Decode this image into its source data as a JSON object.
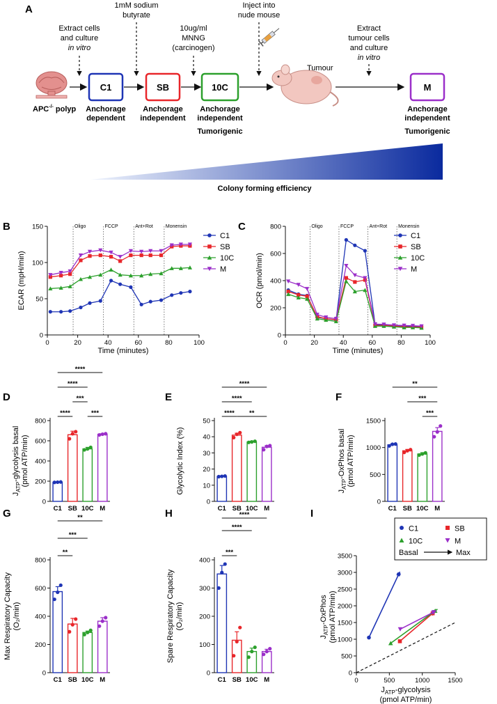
{
  "colors": {
    "C1": "#1f35b5",
    "SB": "#e8262a",
    "10C": "#2ca02c",
    "M": "#9b2fc9",
    "gradient_dark": "#0a2a9e",
    "gradient_light": "#dfe8fb"
  },
  "panelA": {
    "letter": "A",
    "steps": [
      {
        "text_lines": [
          "Extract cells",
          "and culture"
        ],
        "italic": "in vitro"
      },
      {
        "text_lines": [
          "1mM sodium",
          "butyrate"
        ],
        "italic": ""
      },
      {
        "text_lines": [
          "10ug/ml",
          "MNNG",
          "(carcinogen)"
        ],
        "italic": ""
      },
      {
        "text_lines": [
          "Inject into",
          "nude mouse"
        ],
        "italic": ""
      },
      {
        "text_lines": [
          "Extract",
          "tumour cells",
          "and culture"
        ],
        "italic": "in vitro"
      }
    ],
    "polyp_label": "APC",
    "polyp_sup": "-/-",
    "polyp_suffix": " polyp",
    "tumour_label": "Tumour",
    "boxes": [
      {
        "label": "C1",
        "desc_lines": [
          "Anchorage",
          "dependent"
        ],
        "extra": ""
      },
      {
        "label": "SB",
        "desc_lines": [
          "Anchorage",
          "independent"
        ],
        "extra": ""
      },
      {
        "label": "10C",
        "desc_lines": [
          "Anchorage",
          "independent"
        ],
        "extra": "Tumorigenic"
      },
      {
        "label": "M",
        "desc_lines": [
          "Anchorage",
          "independent"
        ],
        "extra": "Tumorigenic"
      }
    ],
    "gradient_label": "Colony forming efficiency"
  },
  "legend_groups": [
    "C1",
    "SB",
    "10C",
    "M"
  ],
  "injections": [
    "Oligo",
    "FCCP",
    "Ant+Rot",
    "Monensin"
  ],
  "chart_data": [
    {
      "id": "B",
      "type": "line",
      "letter": "B",
      "ylabel": "ECAR (mpH/min)",
      "xlabel": "Time (minutes)",
      "xlim": [
        0,
        100
      ],
      "ylim": [
        0,
        150
      ],
      "xticks": [
        "0",
        "20",
        "40",
        "60",
        "80",
        "100"
      ],
      "yticks": [
        "0",
        "50",
        "100",
        "150"
      ],
      "injection_times": [
        17,
        37,
        57,
        77
      ],
      "x": [
        2,
        9,
        15,
        22,
        28,
        35,
        42,
        48,
        55,
        62,
        68,
        75,
        82,
        88,
        94
      ],
      "series": [
        {
          "name": "C1",
          "values": [
            32,
            32,
            33,
            38,
            44,
            47,
            75,
            70,
            66,
            42,
            46,
            48,
            55,
            58,
            60
          ]
        },
        {
          "name": "SB",
          "values": [
            80,
            82,
            84,
            103,
            109,
            110,
            108,
            102,
            110,
            110,
            110,
            110,
            122,
            123,
            123
          ]
        },
        {
          "name": "10C",
          "values": [
            64,
            65,
            67,
            77,
            80,
            83,
            90,
            83,
            82,
            82,
            84,
            85,
            92,
            92,
            93
          ]
        },
        {
          "name": "M",
          "values": [
            83,
            86,
            88,
            110,
            115,
            117,
            114,
            108,
            116,
            115,
            116,
            116,
            124,
            125,
            125
          ]
        }
      ]
    },
    {
      "id": "C",
      "type": "line",
      "letter": "C",
      "ylabel": "OCR (pmol/min)",
      "xlabel": "Time (minutes)",
      "xlim": [
        0,
        100
      ],
      "ylim": [
        0,
        800
      ],
      "xticks": [
        "0",
        "20",
        "40",
        "60",
        "80",
        "100"
      ],
      "yticks": [
        "0",
        "200",
        "400",
        "600",
        "800"
      ],
      "injection_times": [
        17,
        37,
        57,
        77
      ],
      "x": [
        2,
        9,
        15,
        22,
        28,
        35,
        42,
        48,
        55,
        62,
        68,
        75,
        82,
        88,
        94
      ],
      "series": [
        {
          "name": "C1",
          "values": [
            330,
            300,
            290,
            130,
            120,
            110,
            700,
            660,
            620,
            75,
            75,
            70,
            65,
            62,
            60
          ]
        },
        {
          "name": "SB",
          "values": [
            320,
            295,
            285,
            135,
            120,
            112,
            420,
            390,
            405,
            70,
            70,
            65,
            60,
            58,
            57
          ]
        },
        {
          "name": "10C",
          "values": [
            300,
            275,
            265,
            120,
            110,
            100,
            395,
            320,
            330,
            65,
            65,
            60,
            55,
            55,
            52
          ]
        },
        {
          "name": "M",
          "values": [
            395,
            370,
            340,
            150,
            130,
            120,
            510,
            440,
            420,
            80,
            78,
            72,
            70,
            68,
            65
          ]
        }
      ]
    },
    {
      "id": "D",
      "type": "bar",
      "letter": "D",
      "ylabel_main": "J",
      "ylabel_sub": "ATP",
      "ylabel_rest": "-glycolysis basal",
      "ylabel2": "(pmol ATP/min)",
      "categories": [
        "C1",
        "SB",
        "10C",
        "M"
      ],
      "values": [
        190,
        660,
        520,
        665
      ],
      "errors": [
        5,
        35,
        15,
        5
      ],
      "ylim": [
        0,
        800
      ],
      "yticks": [
        "0",
        "200",
        "400",
        "600",
        "800"
      ],
      "points": [
        [
          188,
          190,
          192
        ],
        [
          620,
          670,
          690
        ],
        [
          510,
          520,
          535
        ],
        [
          658,
          665,
          670
        ]
      ],
      "sig": [
        {
          "from": 0,
          "to": 3,
          "stars": "****",
          "level": 4
        },
        {
          "from": 0,
          "to": 2,
          "stars": "****",
          "level": 3
        },
        {
          "from": 1,
          "to": 2,
          "stars": "***",
          "level": 2
        },
        {
          "from": 0,
          "to": 1,
          "stars": "****",
          "level": 1
        },
        {
          "from": 2,
          "to": 3,
          "stars": "***",
          "level": 1
        }
      ]
    },
    {
      "id": "E",
      "type": "bar",
      "letter": "E",
      "ylabel_main": "Glycolytic Index (%)",
      "ylabel_sub": "",
      "ylabel_rest": "",
      "ylabel2": "",
      "categories": [
        "C1",
        "SB",
        "10C",
        "M"
      ],
      "values": [
        15.5,
        41,
        36.8,
        33.5
      ],
      "errors": [
        0.3,
        1.2,
        0.5,
        1
      ],
      "ylim": [
        0,
        50
      ],
      "yticks": [
        "0",
        "10",
        "20",
        "30",
        "40",
        "50"
      ],
      "points": [
        [
          15.3,
          15.5,
          15.7
        ],
        [
          39.5,
          41.5,
          42.5
        ],
        [
          36.5,
          36.8,
          37.2
        ],
        [
          32,
          34,
          34.5
        ]
      ],
      "sig": [
        {
          "from": 0,
          "to": 3,
          "stars": "****",
          "level": 3
        },
        {
          "from": 0,
          "to": 2,
          "stars": "****",
          "level": 2
        },
        {
          "from": 0,
          "to": 1,
          "stars": "****",
          "level": 1
        },
        {
          "from": 1,
          "to": 3,
          "stars": "**",
          "level": 1
        }
      ]
    },
    {
      "id": "F",
      "type": "bar",
      "letter": "F",
      "ylabel_main": "J",
      "ylabel_sub": "ATP",
      "ylabel_rest": "-OxPhos basal",
      "ylabel2": "(pmol ATP/min)",
      "categories": [
        "C1",
        "SB",
        "10C",
        "M"
      ],
      "values": [
        1050,
        940,
        880,
        1300
      ],
      "errors": [
        20,
        25,
        25,
        70
      ],
      "ylim": [
        0,
        1500
      ],
      "yticks": [
        "0",
        "500",
        "1000",
        "1500"
      ],
      "points": [
        [
          1030,
          1060,
          1065
        ],
        [
          910,
          940,
          960
        ],
        [
          860,
          880,
          900
        ],
        [
          1200,
          1290,
          1400
        ]
      ],
      "sig": [
        {
          "from": 0,
          "to": 3,
          "stars": "**",
          "level": 3
        },
        {
          "from": 1,
          "to": 3,
          "stars": "***",
          "level": 2
        },
        {
          "from": 2,
          "to": 3,
          "stars": "***",
          "level": 1
        }
      ]
    },
    {
      "id": "G",
      "type": "bar",
      "letter": "G",
      "ylabel_main": "Max Respiratory Capacity",
      "ylabel_sub": "",
      "ylabel_rest": "",
      "ylabel2": "(O₂/min)",
      "categories": [
        "C1",
        "SB",
        "10C",
        "M"
      ],
      "values": [
        575,
        345,
        285,
        365
      ],
      "errors": [
        35,
        40,
        10,
        25
      ],
      "ylim": [
        0,
        800
      ],
      "yticks": [
        "0",
        "200",
        "400",
        "600",
        "800"
      ],
      "points": [
        [
          520,
          570,
          620
        ],
        [
          290,
          340,
          380
        ],
        [
          270,
          285,
          300
        ],
        [
          330,
          365,
          390
        ]
      ],
      "sig": [
        {
          "from": 0,
          "to": 3,
          "stars": "**",
          "level": 3
        },
        {
          "from": 0,
          "to": 2,
          "stars": "***",
          "level": 2
        },
        {
          "from": 0,
          "to": 1,
          "stars": "**",
          "level": 1
        }
      ]
    },
    {
      "id": "H",
      "type": "bar",
      "letter": "H",
      "ylabel_main": "Spare Respiratory Capacity",
      "ylabel_sub": "",
      "ylabel_rest": "",
      "ylabel2": "(O₂/min)",
      "categories": [
        "C1",
        "SB",
        "10C",
        "M"
      ],
      "values": [
        350,
        115,
        75,
        75
      ],
      "errors": [
        30,
        30,
        12,
        8
      ],
      "ylim": [
        0,
        400
      ],
      "yticks": [
        "0",
        "100",
        "200",
        "300",
        "400"
      ],
      "points": [
        [
          300,
          355,
          385
        ],
        [
          60,
          110,
          160
        ],
        [
          55,
          75,
          90
        ],
        [
          65,
          75,
          85
        ]
      ],
      "sig": [
        {
          "from": 0,
          "to": 3,
          "stars": "****",
          "level": 4
        },
        {
          "from": 0,
          "to": 2,
          "stars": "****",
          "level": 3
        },
        {
          "from": 0,
          "to": 1,
          "stars": "***",
          "level": 1
        }
      ]
    },
    {
      "id": "I",
      "type": "scatter",
      "letter": "I",
      "ylabel_main": "J",
      "ylabel_sub": "ATP",
      "ylabel_rest": "-OxPhos",
      "ylabel2": "(pmol ATP/min)",
      "xlabel_main": "J",
      "xlabel_sub": "ATP",
      "xlabel_rest": "-glycolysis",
      "xlabel2": "(pmol ATP/min)",
      "xlim": [
        0,
        1500
      ],
      "ylim": [
        0,
        3500
      ],
      "xticks": [
        "0",
        "500",
        "1000",
        "1500"
      ],
      "yticks": [
        "0",
        "500",
        "1000",
        "1500",
        "2000",
        "2500",
        "3000",
        "3500"
      ],
      "series": [
        {
          "name": "C1",
          "basal": [
            190,
            1050
          ],
          "max": [
            660,
            3020
          ]
        },
        {
          "name": "SB",
          "basal": [
            660,
            940
          ],
          "max": [
            1190,
            1830
          ]
        },
        {
          "name": "10C",
          "basal": [
            520,
            880
          ],
          "max": [
            1230,
            1900
          ]
        },
        {
          "name": "M",
          "basal": [
            665,
            1300
          ],
          "max": [
            1210,
            1850
          ]
        }
      ],
      "legend_arrow_left": "Basal",
      "legend_arrow_right": "Max"
    }
  ]
}
